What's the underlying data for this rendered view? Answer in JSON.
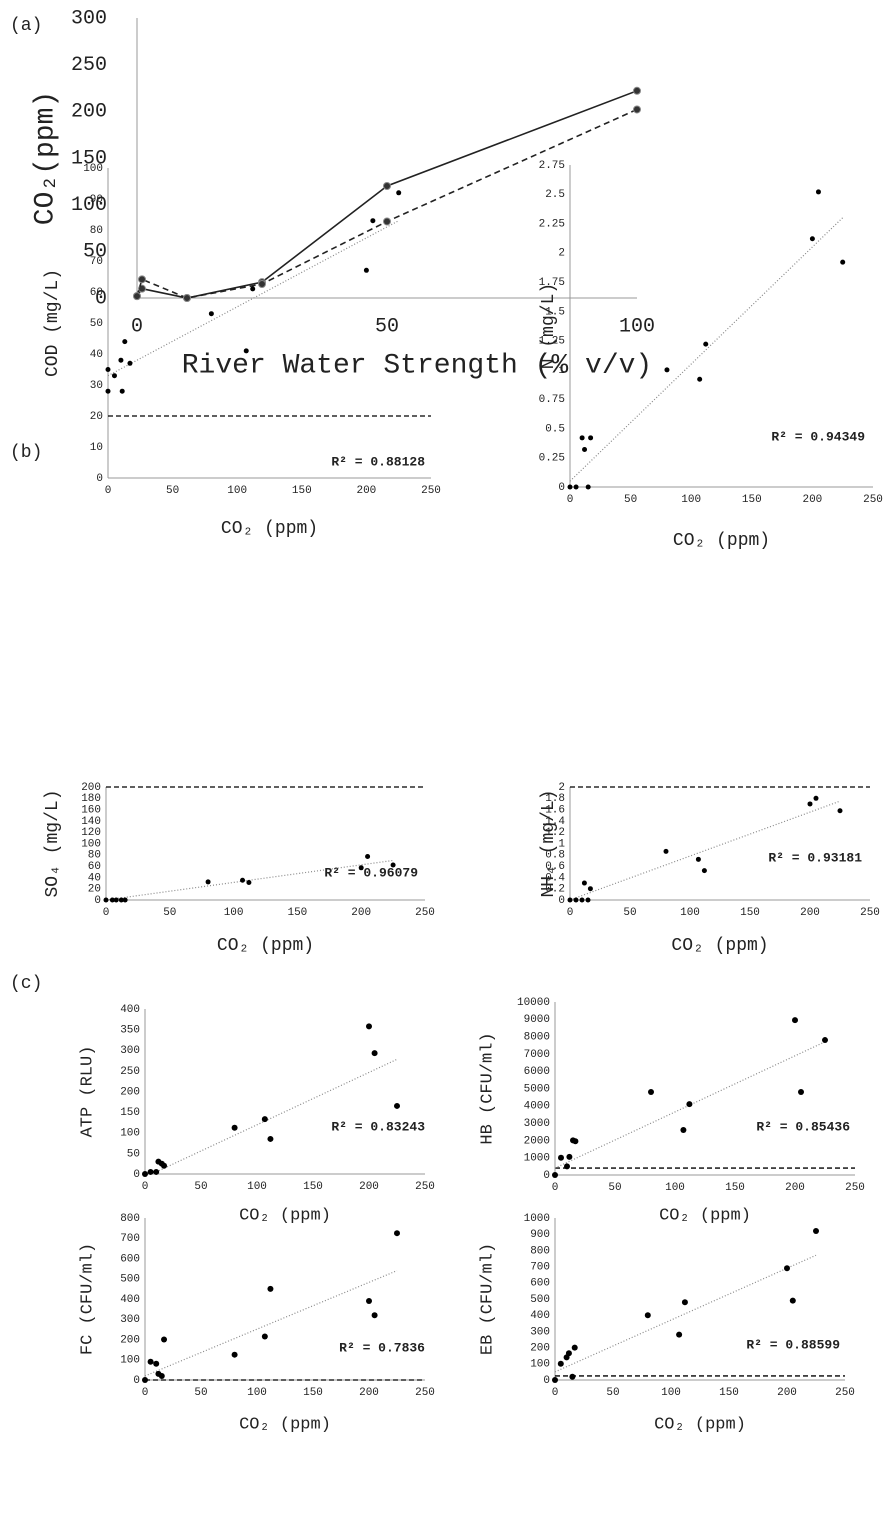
{
  "chart_data": [
    {
      "type": "line",
      "label": "(a)",
      "x_label": "River Water Strength (% v/v)",
      "y_label": "CO₂(ppm)",
      "x": [
        0,
        1,
        10,
        25,
        50,
        100
      ],
      "series": [
        {
          "values": [
            2,
            10,
            0,
            17,
            120,
            222
          ],
          "color": "#222222",
          "linestyle": "solid"
        },
        {
          "values": [
            2,
            20,
            0,
            15,
            82,
            202
          ],
          "color": "#222222",
          "linestyle": "dashed"
        }
      ],
      "xlim": [
        0,
        100
      ],
      "xticks": [
        0,
        50,
        100
      ],
      "ylim": [
        0,
        300
      ],
      "yticks": [
        0,
        50,
        100,
        150,
        200,
        250,
        300
      ]
    },
    {
      "type": "scatter",
      "label": "(b)",
      "x_label": "CO₂ (ppm)",
      "y_label": "COD (mg/L)",
      "r2_label": "R² = 0.88128",
      "x": [
        0,
        0,
        5,
        10,
        11,
        13,
        17,
        80,
        107,
        112,
        200,
        205,
        225
      ],
      "values": [
        35,
        28,
        33,
        38,
        28,
        44,
        37,
        53,
        41,
        61,
        67,
        83,
        92
      ],
      "color": "#000000",
      "trendline": {
        "x": [
          0,
          225
        ],
        "values": [
          33,
          83
        ]
      },
      "threshold": 20,
      "xlim": [
        0,
        250
      ],
      "xticks": [
        0,
        50,
        100,
        150,
        200,
        250
      ],
      "ylim": [
        0,
        100
      ],
      "yticks": [
        0,
        10,
        20,
        30,
        40,
        50,
        60,
        70,
        80,
        90,
        100
      ]
    },
    {
      "type": "scatter",
      "x_label": "CO₂ (ppm)",
      "y_label": "N (mg/L)",
      "r2_label": "R² = 0.94349",
      "x": [
        0,
        5,
        10,
        12,
        15,
        17,
        80,
        107,
        112,
        200,
        205,
        225
      ],
      "values": [
        0,
        0,
        0.42,
        0.32,
        0,
        0.42,
        1.0,
        0.92,
        1.22,
        2.12,
        2.52,
        1.92
      ],
      "color": "#000000",
      "trendline": {
        "x": [
          0,
          225
        ],
        "values": [
          0.05,
          2.3
        ]
      },
      "xlim": [
        0,
        250
      ],
      "xticks": [
        0,
        50,
        100,
        150,
        200,
        250
      ],
      "ylim": [
        0,
        2.75
      ],
      "yticks": [
        0,
        0.25,
        0.5,
        0.75,
        1,
        1.25,
        1.5,
        1.75,
        2,
        2.25,
        2.5,
        2.75
      ]
    },
    {
      "type": "scatter",
      "x_label": "CO₂ (ppm)",
      "y_label": "SO₄ (mg/L)",
      "r2_label": "R² = 0.96079",
      "x": [
        0,
        5,
        8,
        12,
        15,
        80,
        107,
        112,
        200,
        205,
        225
      ],
      "values": [
        0,
        0,
        0,
        0,
        0,
        32,
        35,
        31,
        57,
        77,
        62
      ],
      "color": "#000000",
      "trendline": {
        "x": [
          0,
          225
        ],
        "values": [
          0,
          70
        ]
      },
      "threshold": 200,
      "xlim": [
        0,
        250
      ],
      "xticks": [
        0,
        50,
        100,
        150,
        200,
        250
      ],
      "ylim": [
        0,
        200
      ],
      "yticks": [
        0,
        20,
        40,
        60,
        80,
        100,
        120,
        140,
        160,
        180,
        200
      ]
    },
    {
      "type": "scatter",
      "x_label": "CO₂ (ppm)",
      "y_label": "NH₄ (mg/L)",
      "r2_label": "R² = 0.93181",
      "x": [
        0,
        5,
        10,
        12,
        15,
        17,
        80,
        107,
        112,
        200,
        205,
        225
      ],
      "values": [
        0,
        0,
        0,
        0.3,
        0,
        0.2,
        0.86,
        0.72,
        0.52,
        1.7,
        1.8,
        1.58
      ],
      "color": "#000000",
      "trendline": {
        "x": [
          0,
          225
        ],
        "values": [
          0,
          1.75
        ]
      },
      "threshold": 2,
      "xlim": [
        0,
        250
      ],
      "xticks": [
        0,
        50,
        100,
        150,
        200,
        250
      ],
      "ylim": [
        0,
        2
      ],
      "yticks": [
        0,
        0.2,
        0.4,
        0.6,
        0.8,
        1,
        1.2,
        1.4,
        1.6,
        1.8,
        2
      ]
    },
    {
      "type": "scatter",
      "label": "(c)",
      "x_label": "CO₂ (ppm)",
      "y_label": "ATP (RLU)",
      "r2_label": "R² = 0.83243",
      "x": [
        0,
        5,
        10,
        12,
        15,
        17,
        80,
        107,
        112,
        200,
        205,
        225
      ],
      "values": [
        0,
        5,
        5,
        30,
        25,
        20,
        112,
        133,
        85,
        358,
        293,
        165
      ],
      "color": "#000000",
      "trendline": {
        "x": [
          10,
          225
        ],
        "values": [
          5,
          278
        ]
      },
      "xlim": [
        0,
        250
      ],
      "xticks": [
        0,
        50,
        100,
        150,
        200,
        250
      ],
      "ylim": [
        0,
        400
      ],
      "yticks": [
        0,
        50,
        100,
        150,
        200,
        250,
        300,
        350,
        400
      ]
    },
    {
      "type": "scatter",
      "x_label": "CO₂ (ppm)",
      "y_label": "HB (CFU/ml)",
      "r2_label": "R² = 0.85436",
      "x": [
        0,
        5,
        10,
        12,
        15,
        17,
        80,
        107,
        112,
        200,
        205,
        225
      ],
      "values": [
        0,
        1000,
        500,
        1050,
        2000,
        1950,
        4800,
        2600,
        4100,
        8950,
        4800,
        7800
      ],
      "color": "#000000",
      "trendline": {
        "x": [
          0,
          225
        ],
        "values": [
          400,
          7700
        ]
      },
      "threshold": 400,
      "xlim": [
        0,
        250
      ],
      "xticks": [
        0,
        50,
        100,
        150,
        200,
        250
      ],
      "ylim": [
        0,
        10000
      ],
      "yticks": [
        0,
        1000,
        2000,
        3000,
        4000,
        5000,
        6000,
        7000,
        8000,
        9000,
        10000
      ]
    },
    {
      "type": "scatter",
      "x_label": "CO₂ (ppm)",
      "y_label": "FC (CFU/ml)",
      "r2_label": "R² = 0.7836",
      "x": [
        0,
        5,
        10,
        12,
        15,
        17,
        80,
        107,
        112,
        200,
        205,
        225
      ],
      "values": [
        0,
        90,
        80,
        30,
        20,
        200,
        125,
        215,
        450,
        390,
        320,
        725
      ],
      "color": "#000000",
      "trendline": {
        "x": [
          0,
          225
        ],
        "values": [
          20,
          540
        ]
      },
      "threshold": 0,
      "xlim": [
        0,
        250
      ],
      "xticks": [
        0,
        50,
        100,
        150,
        200,
        250
      ],
      "ylim": [
        0,
        800
      ],
      "yticks": [
        0,
        100,
        200,
        300,
        400,
        500,
        600,
        700,
        800
      ]
    },
    {
      "type": "scatter",
      "x_label": "CO₂ (ppm)",
      "y_label": "EB (CFU/ml)",
      "r2_label": "R² = 0.88599",
      "x": [
        0,
        5,
        10,
        12,
        15,
        17,
        80,
        107,
        112,
        200,
        205,
        225
      ],
      "values": [
        0,
        100,
        140,
        165,
        20,
        200,
        400,
        280,
        480,
        690,
        490,
        920
      ],
      "color": "#000000",
      "trendline": {
        "x": [
          0,
          225
        ],
        "values": [
          50,
          770
        ]
      },
      "threshold": 25,
      "xlim": [
        0,
        250
      ],
      "xticks": [
        0,
        50,
        100,
        150,
        200,
        250
      ],
      "ylim": [
        0,
        1000
      ],
      "yticks": [
        0,
        100,
        200,
        300,
        400,
        500,
        600,
        700,
        800,
        900,
        1000
      ]
    }
  ]
}
